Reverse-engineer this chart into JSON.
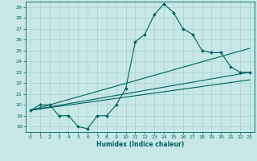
{
  "xlabel": "Humidex (Indice chaleur)",
  "bg_color": "#c8e8e8",
  "grid_color": "#a8d0d0",
  "line_color": "#006060",
  "xlim": [
    -0.5,
    23.5
  ],
  "ylim": [
    17.5,
    29.5
  ],
  "xticks": [
    0,
    1,
    2,
    3,
    4,
    5,
    6,
    7,
    8,
    9,
    10,
    11,
    12,
    13,
    14,
    15,
    16,
    17,
    18,
    19,
    20,
    21,
    22,
    23
  ],
  "yticks": [
    18,
    19,
    20,
    21,
    22,
    23,
    24,
    25,
    26,
    27,
    28,
    29
  ],
  "line1_x": [
    0,
    1,
    2,
    3,
    4,
    5,
    6,
    7,
    8,
    9,
    10,
    11,
    12,
    13,
    14,
    15,
    16,
    17,
    18,
    19,
    20,
    21,
    22,
    23
  ],
  "line1_y": [
    19.5,
    20.0,
    20.0,
    19.0,
    19.0,
    18.0,
    17.8,
    19.0,
    19.0,
    20.0,
    21.5,
    25.8,
    26.5,
    28.3,
    29.3,
    28.5,
    27.0,
    26.5,
    25.0,
    24.8,
    24.8,
    23.5,
    23.0,
    23.0
  ],
  "line2_x": [
    0,
    23
  ],
  "line2_y": [
    19.5,
    23.0
  ],
  "line3_x": [
    0,
    23
  ],
  "line3_y": [
    19.5,
    22.3
  ],
  "line4_x": [
    0,
    23
  ],
  "line4_y": [
    19.5,
    25.2
  ]
}
